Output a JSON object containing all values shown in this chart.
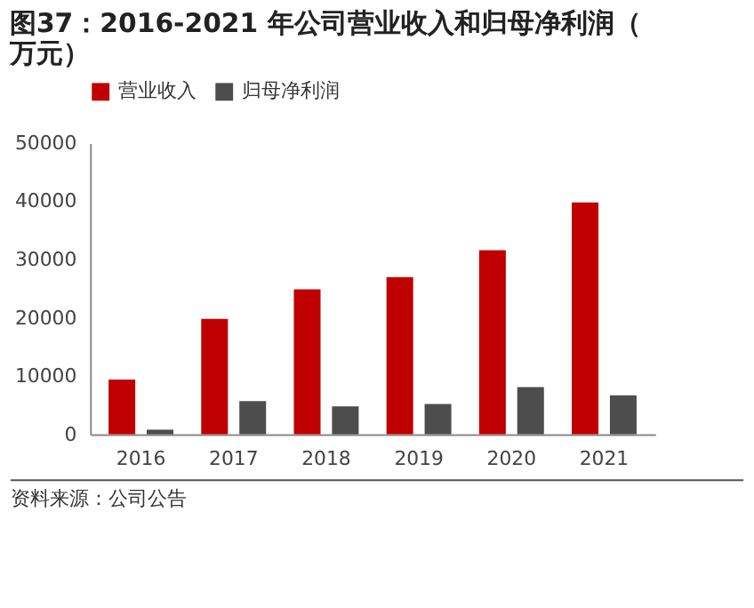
{
  "chart_data": {
    "type": "bar",
    "title": "图37：2016-2021 年公司营业收入和归母净利润（万元）",
    "categories": [
      "2016",
      "2017",
      "2018",
      "2019",
      "2020",
      "2021"
    ],
    "series": [
      {
        "name": "营业收入",
        "color": "#c00000",
        "values": [
          9400,
          19800,
          24900,
          27000,
          31600,
          39800
        ]
      },
      {
        "name": "归母净利润",
        "color": "#4d4d4d",
        "values": [
          800,
          5700,
          4800,
          5200,
          8100,
          6700
        ]
      }
    ],
    "ylim": [
      0,
      50000
    ],
    "yticks": [
      0,
      10000,
      20000,
      30000,
      40000,
      50000
    ],
    "grid": false,
    "legend": "top",
    "annotations": [
      "资料来源：公司公告"
    ]
  }
}
